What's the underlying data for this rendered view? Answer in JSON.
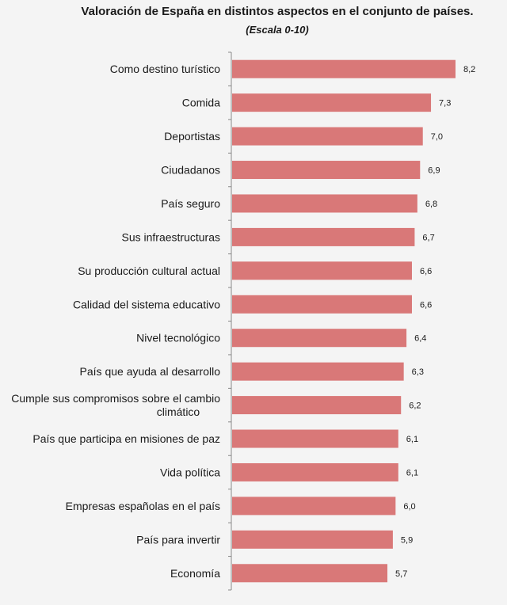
{
  "chart_data": {
    "type": "bar",
    "orientation": "horizontal",
    "title": "Valoración de España en distintos aspectos en el conjunto de países.",
    "subtitle": "(Escala 0-10)",
    "xlabel": "",
    "ylabel": "",
    "xlim": [
      0,
      8.6
    ],
    "grid": false,
    "bar_color": "#d97878",
    "categories": [
      "Como destino turístico",
      "Comida",
      "Deportistas",
      "Ciudadanos",
      "País seguro",
      "Sus infraestructuras",
      "Su producción cultural actual",
      "Calidad del sistema educativo",
      "Nivel tecnológico",
      "País que ayuda al desarrollo",
      "Cumple sus compromisos sobre el cambio climático",
      "País que participa en misiones de paz",
      "Vida política",
      "Empresas españolas en el país",
      "País para invertir",
      "Economía"
    ],
    "values": [
      8.2,
      7.3,
      7.0,
      6.9,
      6.8,
      6.7,
      6.6,
      6.6,
      6.4,
      6.3,
      6.2,
      6.1,
      6.1,
      6.0,
      5.9,
      5.7
    ],
    "value_labels": [
      "8,2",
      "7,3",
      "7,0",
      "6,9",
      "6,8",
      "6,7",
      "6,6",
      "6,6",
      "6,4",
      "6,3",
      "6,2",
      "6,1",
      "6,1",
      "6,0",
      "5,9",
      "5,7"
    ]
  }
}
